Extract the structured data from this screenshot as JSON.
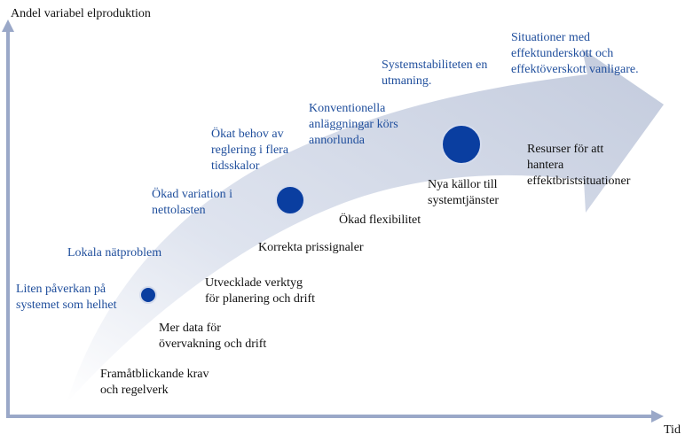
{
  "axes": {
    "y_label": "Andel variabel elproduktion",
    "x_label": "Tid"
  },
  "upper_labels": [
    {
      "id": "liten",
      "text": "Liten påverkan på\nsystemet som helhet"
    },
    {
      "id": "lokala",
      "text": "Lokala nätproblem"
    },
    {
      "id": "okad-variation",
      "text": "Ökad variation i\nnettolasten"
    },
    {
      "id": "okat-behov",
      "text": "Ökat behov av\nreglering i flera\ntidsskalor"
    },
    {
      "id": "konventionella",
      "text": "Konventionella\nanläggningar körs\nannorlunda"
    },
    {
      "id": "systemstabilitet",
      "text": "Systemstabiliteten en\nutmaning."
    },
    {
      "id": "situationer",
      "text": "Situationer med\neffektunderskott och\neffektöverskott vanligare."
    }
  ],
  "lower_labels": [
    {
      "id": "framat",
      "text": "Framåtblickande krav\noch regelverk"
    },
    {
      "id": "mer-data",
      "text": "Mer data för\növervakning och drift"
    },
    {
      "id": "utvecklade",
      "text": "Utvecklade verktyg\nför planering och drift"
    },
    {
      "id": "korrekta",
      "text": "Korrekta prissignaler"
    },
    {
      "id": "okad-flex",
      "text": "Ökad flexibilitet"
    },
    {
      "id": "nya-kallor",
      "text": "Nya källor till\nsystemtjänster"
    },
    {
      "id": "resurser",
      "text": "Resurser för att\nhantera\neffektbristsituationer"
    }
  ],
  "colors": {
    "arrow_fill": "#c9d1e2",
    "dot_fill": "#0a3ea0",
    "axis": "#9aa8c8",
    "text_blue": "#1f4e9c",
    "text_dark": "#111111"
  }
}
